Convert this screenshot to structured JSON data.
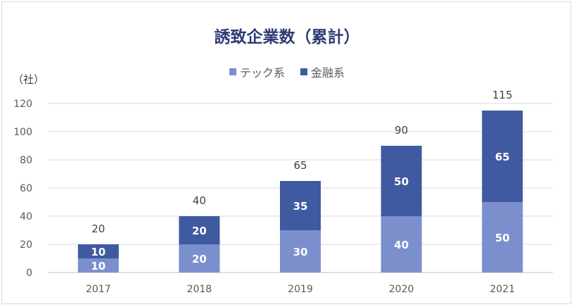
{
  "chart_data": {
    "type": "bar",
    "stacked": true,
    "title": "誘致企業数（累計）",
    "ylabel": "（社）",
    "xlabel": "",
    "categories": [
      "2017",
      "2018",
      "2019",
      "2020",
      "2021"
    ],
    "ylim": [
      0,
      120
    ],
    "yticks": [
      0,
      20,
      40,
      60,
      80,
      100,
      120
    ],
    "grid": true,
    "legend": "top",
    "series": [
      {
        "name": "テック系",
        "values": [
          10,
          20,
          30,
          40,
          50
        ],
        "color": "#7a8fcc"
      },
      {
        "name": "金融系",
        "values": [
          10,
          20,
          35,
          50,
          65
        ],
        "color": "#3f5aa0"
      }
    ],
    "totals": [
      20,
      40,
      65,
      90,
      115
    ]
  }
}
